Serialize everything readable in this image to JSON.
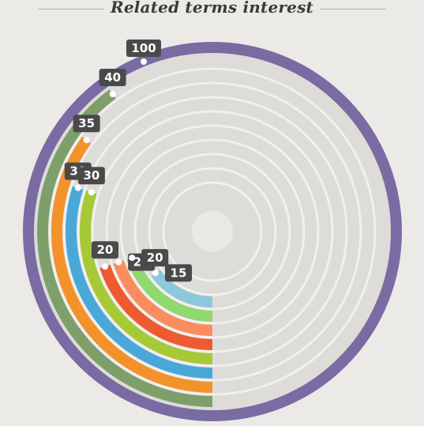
{
  "chart_data": {
    "type": "radial-bar",
    "title": "Related terms interest",
    "max": 100,
    "series": [
      {
        "value": 100,
        "label": "100",
        "color": "#7a6ba3"
      },
      {
        "value": 40,
        "label": "40",
        "color": "#7f9f6a"
      },
      {
        "value": 35,
        "label": "35",
        "color": "#f3922b"
      },
      {
        "value": 30,
        "label": "30",
        "color": "#4aa8d8"
      },
      {
        "value": 30,
        "label": "30",
        "color": "#a6c936"
      },
      {
        "value": 20,
        "label": "20",
        "color": "#ee5b30"
      },
      {
        "value": 20,
        "label": "20",
        "color": "#fb8c5e"
      },
      {
        "value": 20,
        "label": "20",
        "color": "#90d870"
      },
      {
        "value": 15,
        "label": "15",
        "color": "#8cc8da"
      }
    ],
    "colors": {
      "background": "#ebeae6",
      "track": "#dedcd8",
      "track_gap": "#f1f0ed",
      "tag": "#4a4a4a",
      "tag_text": "#ffffff"
    }
  }
}
